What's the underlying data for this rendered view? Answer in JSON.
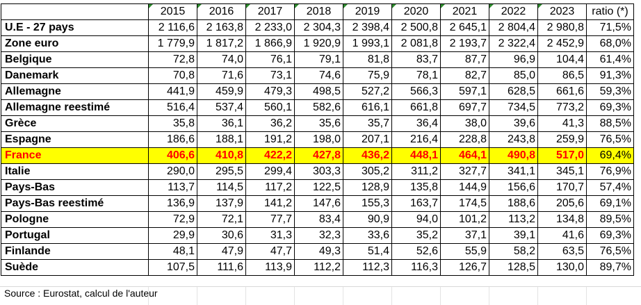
{
  "table": {
    "years": [
      "2015",
      "2016",
      "2017",
      "2018",
      "2019",
      "2020",
      "2021",
      "2022",
      "2023"
    ],
    "ratio_header": "ratio (*)",
    "rows": [
      {
        "label": "U.E - 27 pays",
        "values": [
          "2 116,6",
          "2 163,8",
          "2 233,0",
          "2 304,3",
          "2 398,4",
          "2 500,8",
          "2 645,1",
          "2 804,4",
          "2 980,8"
        ],
        "ratio": "71,5%"
      },
      {
        "label": "Zone euro",
        "values": [
          "1 779,9",
          "1 817,2",
          "1 866,9",
          "1 920,9",
          "1 993,1",
          "2 081,8",
          "2 193,7",
          "2 322,4",
          "2 452,9"
        ],
        "ratio": "68,0%"
      },
      {
        "label": "Belgique",
        "values": [
          "72,8",
          "74,0",
          "76,1",
          "79,1",
          "81,8",
          "83,7",
          "87,7",
          "96,9",
          "104,4"
        ],
        "ratio": "61,4%"
      },
      {
        "label": "Danemark",
        "values": [
          "70,8",
          "71,6",
          "73,1",
          "74,6",
          "75,9",
          "78,1",
          "82,7",
          "85,0",
          "86,5"
        ],
        "ratio": "91,3%"
      },
      {
        "label": "Allemagne",
        "values": [
          "441,9",
          "459,9",
          "479,3",
          "498,5",
          "527,2",
          "566,3",
          "597,1",
          "628,5",
          "661,6"
        ],
        "ratio": "59,3%"
      },
      {
        "label": "Allemagne reestimé",
        "values": [
          "516,4",
          "537,4",
          "560,1",
          "582,6",
          "616,1",
          "661,8",
          "697,7",
          "734,5",
          "773,2"
        ],
        "ratio": "69,3%"
      },
      {
        "label": "Grèce",
        "values": [
          "35,8",
          "36,1",
          "36,2",
          "35,6",
          "35,7",
          "36,4",
          "38,0",
          "39,6",
          "41,3"
        ],
        "ratio": "88,5%"
      },
      {
        "label": "Espagne",
        "values": [
          "186,6",
          "188,1",
          "191,2",
          "198,0",
          "207,1",
          "216,4",
          "228,8",
          "243,8",
          "259,9"
        ],
        "ratio": "76,5%"
      },
      {
        "label": "France",
        "values": [
          "406,6",
          "410,8",
          "422,2",
          "427,8",
          "436,2",
          "448,1",
          "464,1",
          "490,8",
          "517,0"
        ],
        "ratio": "69,4%",
        "highlight": true
      },
      {
        "label": "Italie",
        "values": [
          "290,0",
          "295,5",
          "299,4",
          "303,3",
          "305,2",
          "311,2",
          "327,7",
          "341,1",
          "345,1"
        ],
        "ratio": "76,9%"
      },
      {
        "label": "Pays-Bas",
        "values": [
          "113,7",
          "114,5",
          "117,2",
          "122,5",
          "128,9",
          "135,8",
          "144,9",
          "156,6",
          "170,7"
        ],
        "ratio": "57,4%"
      },
      {
        "label": "Pays-Bas reestimé",
        "values": [
          "136,9",
          "137,9",
          "141,2",
          "147,6",
          "155,3",
          "163,7",
          "174,5",
          "188,6",
          "205,6"
        ],
        "ratio": "69,1%"
      },
      {
        "label": "Pologne",
        "values": [
          "72,9",
          "72,1",
          "77,7",
          "83,4",
          "90,9",
          "94,0",
          "101,2",
          "113,2",
          "134,8"
        ],
        "ratio": "89,5%"
      },
      {
        "label": "Portugal",
        "values": [
          "29,9",
          "30,6",
          "31,3",
          "32,3",
          "33,6",
          "35,2",
          "37,1",
          "39,1",
          "41,6"
        ],
        "ratio": "69,3%"
      },
      {
        "label": "Finlande",
        "values": [
          "48,1",
          "47,9",
          "47,7",
          "49,3",
          "51,4",
          "52,6",
          "55,9",
          "58,2",
          "63,5"
        ],
        "ratio": "76,5%"
      },
      {
        "label": "Suède",
        "values": [
          "107,5",
          "111,6",
          "113,9",
          "112,2",
          "112,3",
          "116,3",
          "126,7",
          "128,5",
          "130,0"
        ],
        "ratio": "89,7%"
      }
    ]
  },
  "source_note": "Source : Eurostat, calcul de l'auteur",
  "colors": {
    "highlight_bg": "#ffff00",
    "highlight_text": "#ff0000",
    "corner_mark": "#2e8b2e"
  }
}
